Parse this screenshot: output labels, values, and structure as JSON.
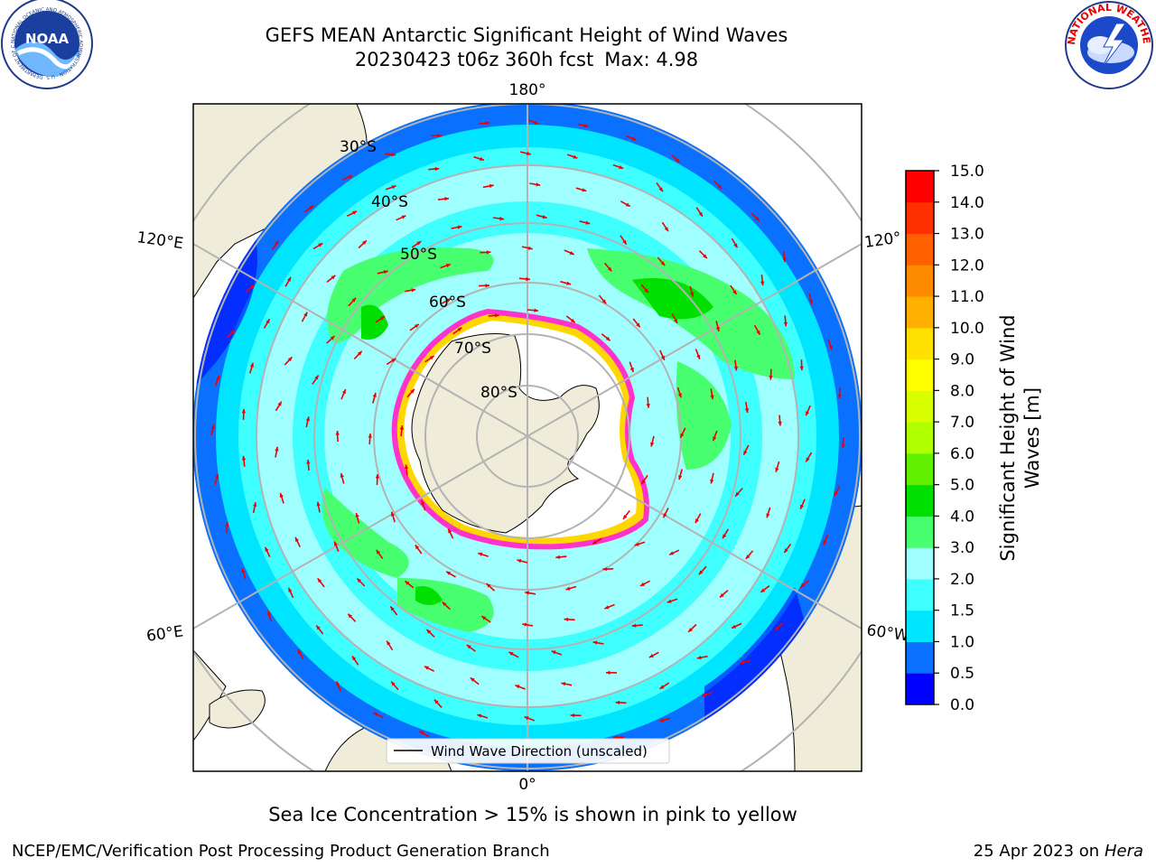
{
  "title": {
    "line1": "GEFS MEAN Antarctic Significant Height of Wind Waves",
    "line2_run": "20230423 t06z 360h fcst",
    "line2_max": "Max: 4.98"
  },
  "map": {
    "projection": "south-polar-stereographic",
    "latitude_labels": [
      "30°S",
      "40°S",
      "50°S",
      "60°S",
      "70°S",
      "80°S"
    ],
    "longitude_labels": {
      "top": "180°",
      "bottom": "0°",
      "upper_left": "120°E",
      "upper_right": "120°",
      "lower_left": "60°E",
      "lower_right": "60°W"
    },
    "colors": {
      "land": "#efedd9",
      "ice_edge": "#ff33cc",
      "ice_edge_inner": "#ffd700",
      "grid": "#b3b3b3",
      "arrow": "#ee0000"
    },
    "legend": {
      "label": "Wind Wave Direction (unscaled)"
    }
  },
  "colorbar": {
    "label_line1": "Significant Height of Wind",
    "label_line2": "Waves [m]",
    "ticks": [
      "0.0",
      "0.5",
      "1.0",
      "1.5",
      "2.0",
      "3.0",
      "4.0",
      "5.0",
      "6.0",
      "7.0",
      "8.0",
      "9.0",
      "10.0",
      "11.0",
      "12.0",
      "13.0",
      "14.0",
      "15.0"
    ],
    "colors": [
      "#0000ff",
      "#0a70ff",
      "#00e5ff",
      "#40ffff",
      "#a0ffff",
      "#48ff70",
      "#00e000",
      "#60f000",
      "#b0ff00",
      "#d8ff00",
      "#ffff00",
      "#ffe000",
      "#ffb000",
      "#ff8c00",
      "#ff6000",
      "#ff3000",
      "#ff0000"
    ]
  },
  "footer": {
    "note": "Sea Ice Concentration > 15% is shown in pink to yellow",
    "left": "NCEP/EMC/Verification Post Processing Product Generation Branch",
    "right_date": "25 Apr 2023 on",
    "right_machine": "Hera"
  },
  "logos": {
    "left": {
      "name": "NOAA",
      "ring_text": "NATIONAL OCEANIC AND ATMOSPHERIC ADMINISTRATION · U.S. DEPARTMENT OF COMMERCE"
    },
    "right": {
      "ring_text": "NATIONAL WEATHER SERVICE"
    }
  }
}
